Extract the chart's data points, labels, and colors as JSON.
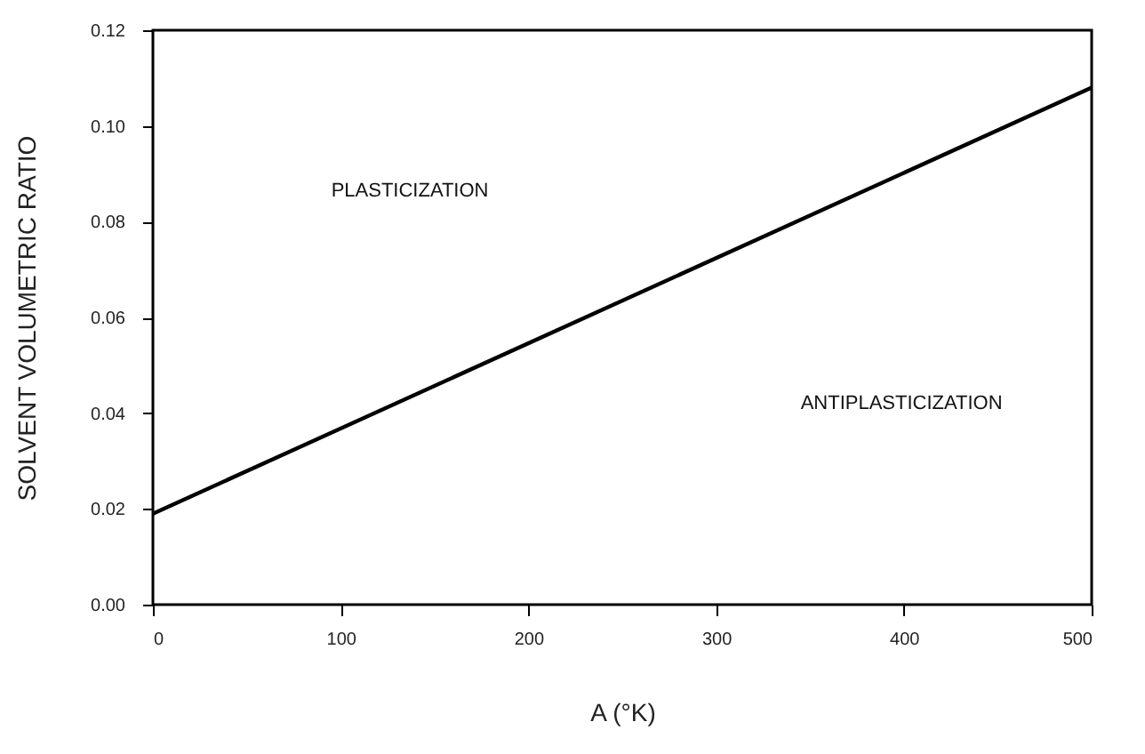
{
  "chart_data": {
    "type": "line",
    "xlabel": "A (°K)",
    "ylabel": "SOLVENT VOLUMETRIC RATIO",
    "x": [
      0,
      500
    ],
    "series": [
      {
        "color": "#000000",
        "values": [
          0.019,
          0.108
        ]
      }
    ],
    "xlim": [
      0,
      500
    ],
    "xticks": [
      0,
      100,
      200,
      300,
      400,
      500
    ],
    "ylim": [
      0,
      0.12
    ],
    "yticks": [
      {
        "value": 0,
        "label": "0.00"
      },
      {
        "value": 0.02,
        "label": "0.02"
      },
      {
        "value": 0.04,
        "label": "0.04"
      },
      {
        "value": 0.06,
        "label": "0.06"
      },
      {
        "value": 0.08,
        "label": "0.08"
      },
      {
        "value": 0.1,
        "label": "0.10"
      },
      {
        "value": 0.12,
        "label": "0.12"
      }
    ],
    "annotations": [
      "PLASTICIZATION",
      "ANTIPLASTICIZATION"
    ],
    "grid": false,
    "marker": "none",
    "line_style": "solid"
  }
}
